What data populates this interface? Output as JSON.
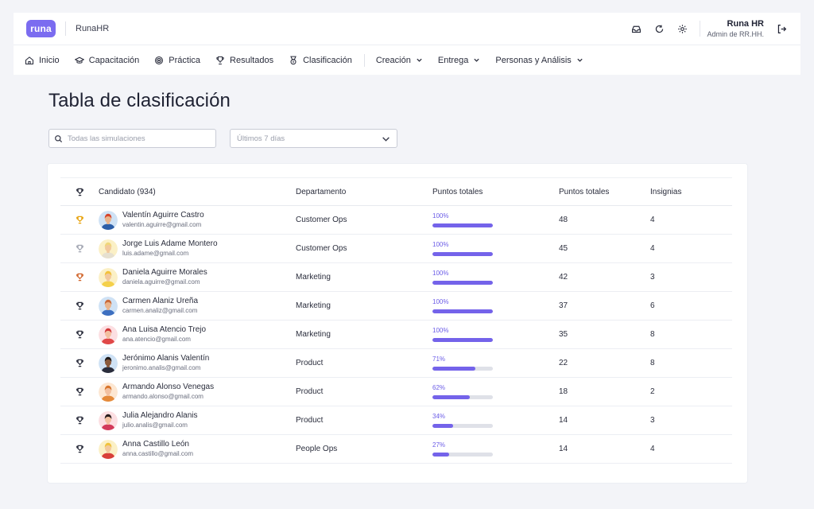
{
  "brand": {
    "logo_text": "runa",
    "name": "RunaHR"
  },
  "header": {
    "icons": [
      "inbox-icon",
      "refresh-icon",
      "settings-icon"
    ],
    "user_name": "Runa HR",
    "user_role": "Admin de RR.HH.",
    "logout_icon": "logout-icon"
  },
  "nav": {
    "items": [
      {
        "label": "Inicio",
        "icon": "home-icon"
      },
      {
        "label": "Capacitación",
        "icon": "graduation-cap-icon"
      },
      {
        "label": "Práctica",
        "icon": "target-icon"
      },
      {
        "label": "Resultados",
        "icon": "trophy-icon"
      },
      {
        "label": "Clasificación",
        "icon": "medal-icon"
      }
    ],
    "dropdowns": [
      {
        "label": "Creación"
      },
      {
        "label": "Entrega"
      },
      {
        "label": "Personas y Análisis"
      }
    ]
  },
  "page": {
    "title": "Tabla de clasificación"
  },
  "filters": {
    "search_placeholder": "Todas las simulaciones",
    "period_value": "Últimos 7 días"
  },
  "table": {
    "headers": {
      "rank": "trophy-icon",
      "candidate": "Candidato (934)",
      "department": "Departamento",
      "progress": "Puntos totales",
      "points": "Puntos totales",
      "badges": "Insignias"
    },
    "rank_colors": {
      "gold": "#e8a20c",
      "silver": "#a3a7b3",
      "bronze": "#d0642a",
      "default": "#2a2d3c"
    },
    "rows": [
      {
        "rank": "gold",
        "name": "Valentín Aguirre Castro",
        "email": "valentin.aguirre@gmail.com",
        "department": "Customer Ops",
        "progress": 100,
        "progress_label": "100%",
        "points": "48",
        "badges": "4",
        "avatar": {
          "bg": "#cfe2f5",
          "skin": "#e9b48c",
          "hair": "#d5452d",
          "shirt": "#2d5fa8"
        }
      },
      {
        "rank": "silver",
        "name": "Jorge Luis Adame Montero",
        "email": "luis.adame@gmail.com",
        "department": "Customer Ops",
        "progress": 100,
        "progress_label": "100%",
        "points": "45",
        "badges": "4",
        "avatar": {
          "bg": "#fbf0c6",
          "skin": "#f2c89c",
          "hair": "#f0d67a",
          "shirt": "#e6e0d0"
        }
      },
      {
        "rank": "bronze",
        "name": "Daniela Aguirre Morales",
        "email": "daniela.aguirre@gmail.com",
        "department": "Marketing",
        "progress": 100,
        "progress_label": "100%",
        "points": "42",
        "badges": "3",
        "avatar": {
          "bg": "#fbf0c6",
          "skin": "#f2c89c",
          "hair": "#f2c13c",
          "shirt": "#f4d04a"
        }
      },
      {
        "rank": "default",
        "name": "Carmen Alaniz Ureña",
        "email": "carmen.analiz@gmail.com",
        "department": "Marketing",
        "progress": 100,
        "progress_label": "100%",
        "points": "37",
        "badges": "6",
        "avatar": {
          "bg": "#cfe2f5",
          "skin": "#e9b48c",
          "hair": "#c96b3a",
          "shirt": "#3d6fc0"
        }
      },
      {
        "rank": "default",
        "name": "Ana Luisa Atencio Trejo",
        "email": "ana.atencio@gmail.com",
        "department": "Marketing",
        "progress": 100,
        "progress_label": "100%",
        "points": "35",
        "badges": "8",
        "avatar": {
          "bg": "#fcdfe2",
          "skin": "#f2c0a0",
          "hair": "#d33a3a",
          "shirt": "#e04848"
        }
      },
      {
        "rank": "default",
        "name": "Jerónimo Alanis Valentín",
        "email": "jeronimo.analis@gmail.com",
        "department": "Product",
        "progress": 71,
        "progress_label": "71%",
        "points": "22",
        "badges": "8",
        "avatar": {
          "bg": "#cfe2f5",
          "skin": "#8a5a3c",
          "hair": "#1f1a1a",
          "shirt": "#2a2d3c"
        }
      },
      {
        "rank": "default",
        "name": "Armando Alonso Venegas",
        "email": "armando.alonso@gmail.com",
        "department": "Product",
        "progress": 62,
        "progress_label": "62%",
        "points": "18",
        "badges": "2",
        "avatar": {
          "bg": "#fde7d2",
          "skin": "#f2c0a0",
          "hair": "#d8762e",
          "shirt": "#e58a3a"
        }
      },
      {
        "rank": "default",
        "name": "Julia Alejandro Alanis",
        "email": "julio.analis@gmail.com",
        "department": "Product",
        "progress": 34,
        "progress_label": "34%",
        "points": "14",
        "badges": "3",
        "avatar": {
          "bg": "#fcdfe2",
          "skin": "#f2c0a0",
          "hair": "#2a1e1e",
          "shirt": "#d33a5a"
        }
      },
      {
        "rank": "default",
        "name": "Anna Castillo León",
        "email": "anna.castillo@gmail.com",
        "department": "People Ops",
        "progress": 27,
        "progress_label": "27%",
        "points": "14",
        "badges": "4",
        "avatar": {
          "bg": "#fbf0c6",
          "skin": "#f2c89c",
          "hair": "#f0c23c",
          "shirt": "#d8403a"
        }
      }
    ]
  }
}
